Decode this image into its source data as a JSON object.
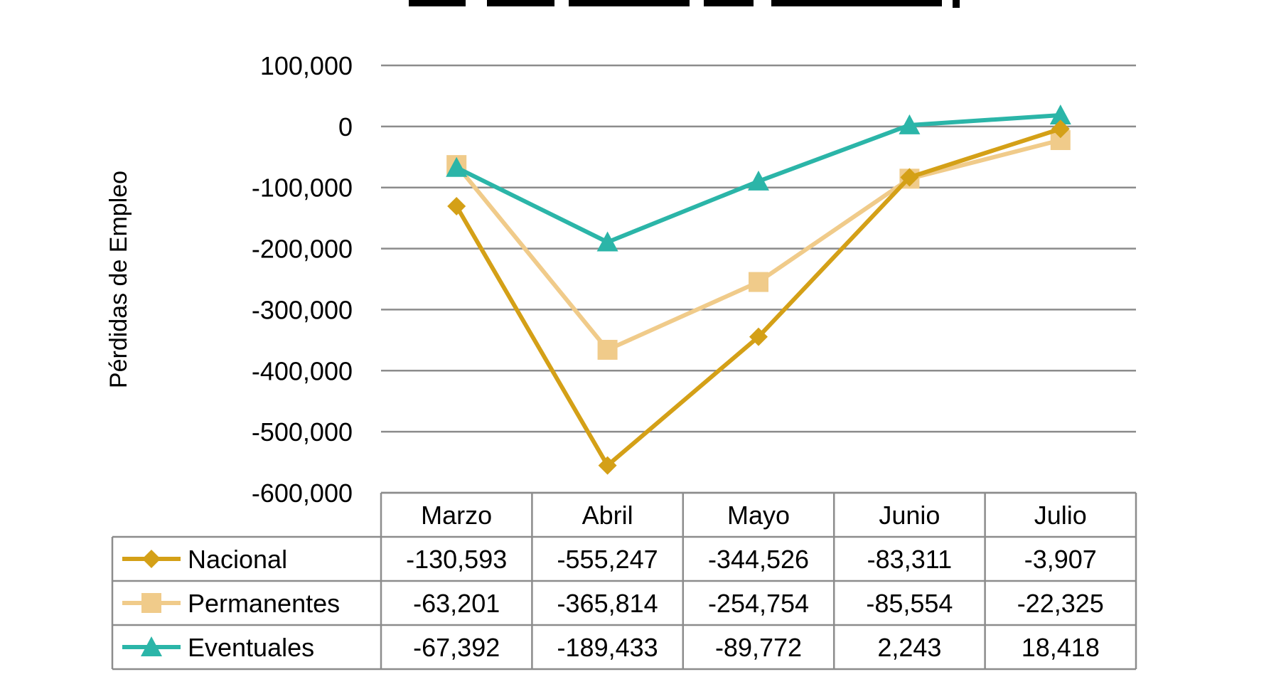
{
  "chart_data": {
    "type": "line",
    "title": "",
    "xlabel": "",
    "ylabel": "Pérdidas de Empleo",
    "ylim": [
      -600000,
      100000
    ],
    "y_ticks": [
      100000,
      0,
      -100000,
      -200000,
      -300000,
      -400000,
      -500000,
      -600000
    ],
    "y_tick_labels": [
      "100,000",
      "0",
      "-100,000",
      "-200,000",
      "-300,000",
      "-400,000",
      "-500,000",
      "-600,000"
    ],
    "grid": true,
    "legend": "data-table-bottom",
    "categories": [
      "Marzo",
      "Abril",
      "Mayo",
      "Junio",
      "Julio"
    ],
    "series": [
      {
        "name": "Nacional",
        "marker": "diamond",
        "color": "#D4A017",
        "values": [
          -130593,
          -555247,
          -344526,
          -83311,
          -3907
        ],
        "labels": [
          "-130,593",
          "-555,247",
          "-344,526",
          "-83,311",
          "-3,907"
        ]
      },
      {
        "name": "Permanentes",
        "marker": "square",
        "color": "#F0CB8A",
        "values": [
          -63201,
          -365814,
          -254754,
          -85554,
          -22325
        ],
        "labels": [
          "-63,201",
          "-365,814",
          "-254,754",
          "-85,554",
          "-22,325"
        ]
      },
      {
        "name": "Eventuales",
        "marker": "triangle",
        "color": "#2BB5A8",
        "values": [
          -67392,
          -189433,
          -89772,
          2243,
          18418
        ],
        "labels": [
          "-67,392",
          "-189,433",
          "-89,772",
          "2,243",
          "18,418"
        ]
      }
    ]
  }
}
